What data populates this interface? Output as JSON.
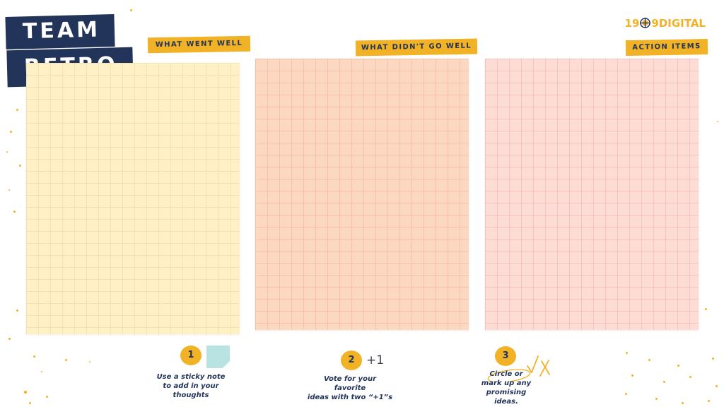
{
  "title": {
    "line1": "TEAM",
    "line2": "RETRO"
  },
  "brand": {
    "name_left": "19",
    "name_right": "9DIGITAL",
    "color": "#f2b225"
  },
  "columns": [
    {
      "label": "WHAT WENT WELL",
      "color": "#fef1c6"
    },
    {
      "label": "WHAT DIDN'T GO WELL",
      "color": "#fdd8c0"
    },
    {
      "label": "ACTION ITEMS",
      "color": "#fddcd5"
    }
  ],
  "steps": [
    {
      "number": "1",
      "lines": [
        "Use a sticky note",
        "to add in your",
        "thoughts"
      ],
      "icon": "sticky-note-icon"
    },
    {
      "number": "2",
      "extra": "+1",
      "lines": [
        "Vote for your",
        "favorite",
        "ideas with two “+1”s"
      ]
    },
    {
      "number": "3",
      "lines": [
        "Circle or",
        "mark up any",
        "promising",
        "ideas."
      ],
      "icon": "check-x-marks-icon"
    }
  ],
  "colors": {
    "navy": "#223459",
    "accent": "#f2b225"
  }
}
